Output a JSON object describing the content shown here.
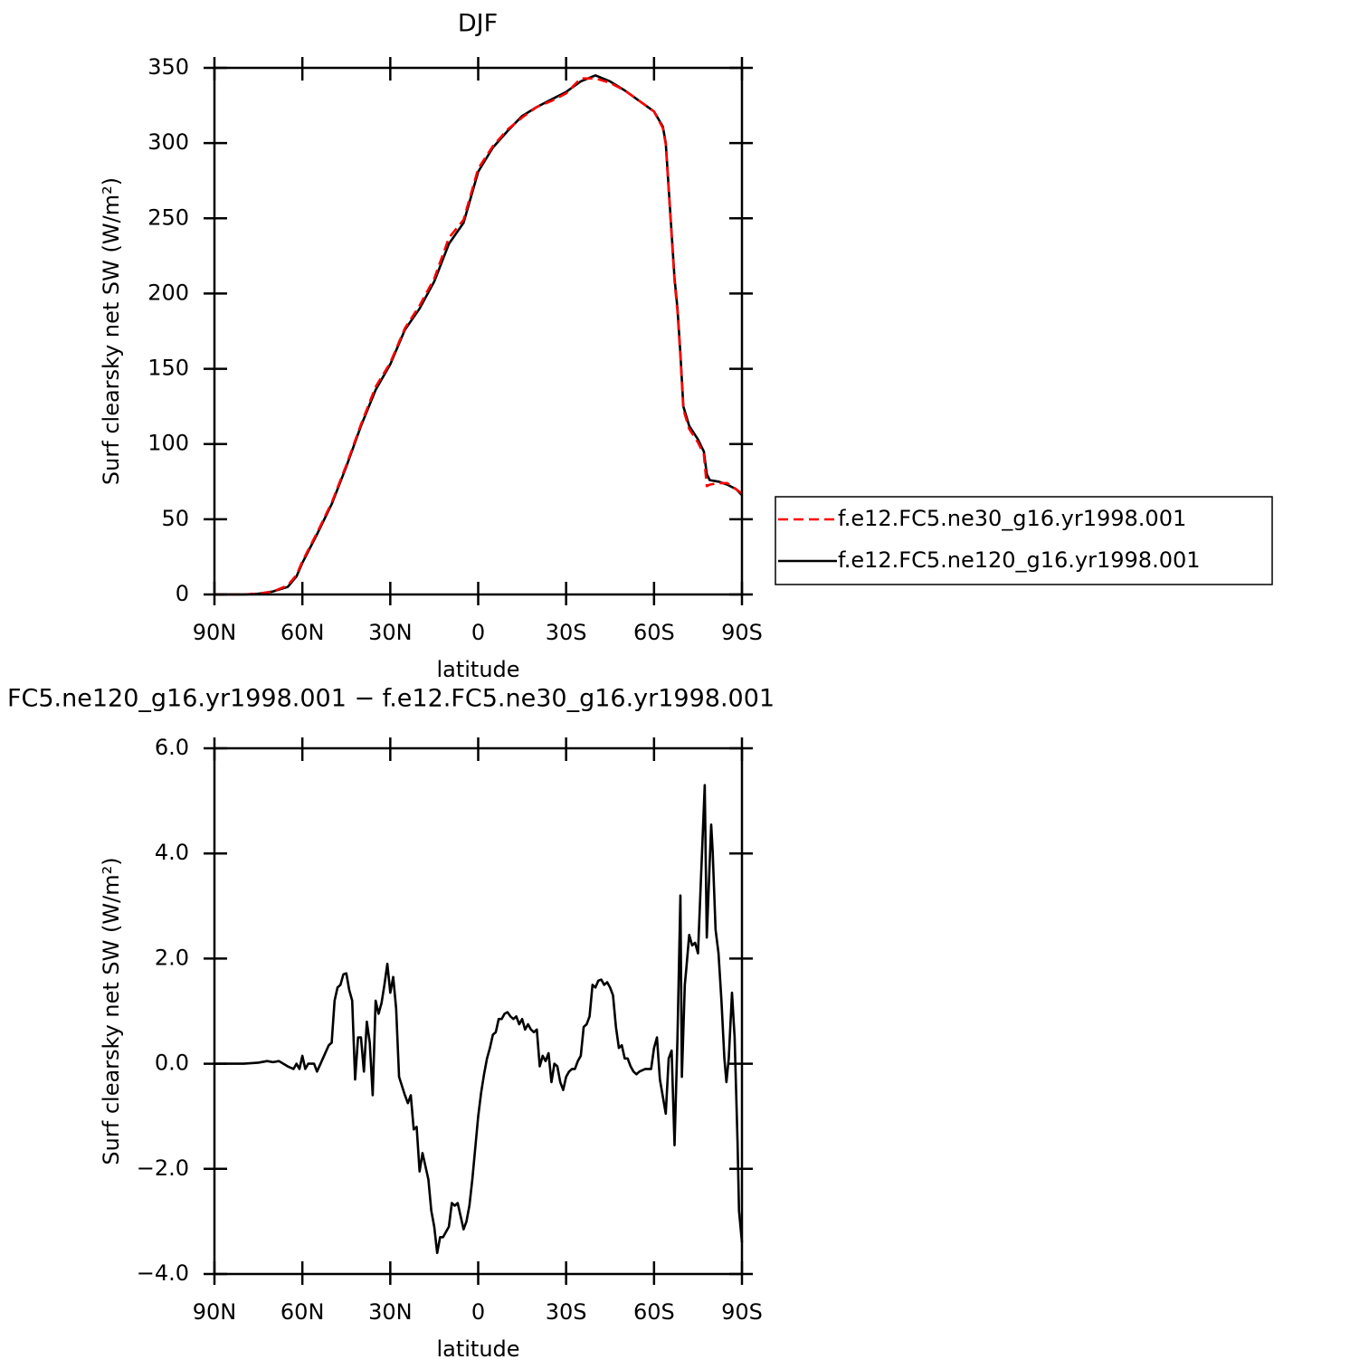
{
  "chart_data": [
    {
      "type": "line",
      "title": "DJF",
      "xlabel": "latitude",
      "ylabel": "Surf clearsky net SW (W/m²)",
      "x": [
        90,
        85,
        80,
        75,
        70,
        65,
        62,
        60,
        55,
        50,
        45,
        40,
        35,
        30,
        25,
        20,
        15,
        10,
        5,
        0,
        -5,
        -10,
        -15,
        -20,
        -25,
        -30,
        -35,
        -40,
        -45,
        -50,
        -55,
        -60,
        -63,
        -64,
        -66,
        -67,
        -68,
        -69,
        -70,
        -72,
        -75,
        -77,
        -78,
        -79,
        -82,
        -85,
        -88,
        -90
      ],
      "series": [
        {
          "name": "f.e12.FC5.ne30_g16.yr1998.001",
          "color": "#ff0000",
          "linestyle": "dashed",
          "values": [
            0,
            0,
            0,
            0.5,
            2,
            6,
            13,
            22,
            41,
            61,
            86,
            113,
            138,
            154,
            177,
            192,
            210,
            237,
            249,
            283,
            298,
            309,
            317,
            324,
            328,
            333,
            343,
            343,
            340,
            335,
            328,
            321,
            310,
            299,
            238,
            208,
            188,
            158,
            123,
            110,
            101,
            93,
            72,
            73,
            74,
            74,
            70,
            67
          ]
        },
        {
          "name": "f.e12.FC5.ne120_g16.yr1998.001",
          "color": "#000000",
          "linestyle": "solid",
          "values": [
            0,
            0,
            0,
            0.5,
            2,
            5,
            12,
            21,
            40,
            60,
            85,
            112,
            136,
            153,
            176,
            190,
            208,
            233,
            247,
            281,
            297,
            308,
            318,
            324,
            329,
            334,
            341,
            345,
            341,
            335,
            328,
            321,
            311,
            300,
            240,
            210,
            190,
            160,
            125,
            112,
            103,
            95,
            80,
            76,
            75,
            73,
            70,
            66
          ]
        }
      ],
      "xlim": [
        90,
        -90
      ],
      "xticks": [
        {
          "value": 90,
          "label": "90N"
        },
        {
          "value": 60,
          "label": "60N"
        },
        {
          "value": 30,
          "label": "30N"
        },
        0,
        {
          "value": -30,
          "label": "30S"
        },
        {
          "value": -60,
          "label": "60S"
        },
        {
          "value": -90,
          "label": "90S"
        }
      ],
      "ylim": [
        0,
        350
      ],
      "yticks": [
        0,
        50,
        100,
        150,
        200,
        250,
        300,
        350
      ],
      "legend": "outside-right"
    },
    {
      "type": "line",
      "title": "FC5.ne120_g16.yr1998.001 − f.e12.FC5.ne30_g16.yr1998.001",
      "xlabel": "latitude",
      "ylabel": "Surf clearsky net SW (W/m²)",
      "x": [
        90,
        80,
        75,
        72,
        70,
        68,
        65,
        63,
        62,
        61,
        60,
        59,
        58,
        56,
        55,
        53,
        51,
        50,
        49,
        48,
        47,
        46,
        45,
        44,
        43,
        42,
        41,
        40,
        39,
        38,
        37,
        36,
        35,
        34,
        33,
        32,
        31,
        30,
        29,
        28,
        27,
        25,
        24,
        23,
        22,
        21,
        20,
        19,
        17,
        16,
        15,
        14,
        13,
        12,
        11,
        10,
        9,
        8,
        7,
        6,
        5,
        4,
        3,
        2,
        1,
        0,
        -1,
        -2,
        -3,
        -4,
        -5,
        -6,
        -7,
        -8,
        -9,
        -10,
        -11,
        -12,
        -13,
        -14,
        -15,
        -16,
        -17,
        -18,
        -19,
        -20,
        -21,
        -22,
        -23,
        -24,
        -25,
        -26,
        -27,
        -28,
        -29,
        -30,
        -31,
        -32,
        -33,
        -34,
        -35,
        -36,
        -37,
        -38,
        -39,
        -40,
        -41,
        -42,
        -43,
        -44,
        -45,
        -46,
        -47,
        -48,
        -49,
        -50,
        -51,
        -52,
        -53,
        -54,
        -55,
        -57,
        -59,
        -60,
        -61,
        -62,
        -64,
        -65,
        -66,
        -67,
        -68,
        -69,
        -69.5,
        -70.5,
        -71,
        -72,
        -73,
        -74,
        -75,
        -76,
        -77.3,
        -78,
        -79.5,
        -80,
        -81,
        -82,
        -83,
        -84,
        -84.7,
        -85.5,
        -86.6,
        -87.5,
        -88.5,
        -89,
        -90
      ],
      "series": [
        {
          "color": "#000000",
          "linestyle": "solid",
          "values": [
            0,
            0,
            0.02,
            0.05,
            0.03,
            0.05,
            -0.05,
            -0.1,
            0,
            -0.1,
            0.15,
            -0.1,
            0,
            0,
            -0.15,
            0.1,
            0.35,
            0.4,
            1.2,
            1.45,
            1.5,
            1.7,
            1.72,
            1.4,
            1.2,
            -0.3,
            0.5,
            0.5,
            -0.15,
            0.8,
            0.4,
            -0.6,
            1.2,
            0.95,
            1.15,
            1.5,
            1.9,
            1.35,
            1.65,
            1.05,
            -0.25,
            -0.6,
            -0.75,
            -0.6,
            -1.25,
            -1.2,
            -2.05,
            -1.7,
            -2.2,
            -2.8,
            -3.1,
            -3.6,
            -3.3,
            -3.3,
            -3.2,
            -3.1,
            -2.65,
            -2.7,
            -2.65,
            -2.9,
            -3.15,
            -3.0,
            -2.7,
            -2.2,
            -1.6,
            -1.0,
            -0.55,
            -0.2,
            0.1,
            0.3,
            0.55,
            0.6,
            0.85,
            0.85,
            0.95,
            0.98,
            0.9,
            0.85,
            0.9,
            0.75,
            0.85,
            0.65,
            0.75,
            0.65,
            0.6,
            0.65,
            -0.05,
            0.15,
            0.05,
            0.2,
            -0.35,
            0,
            -0.05,
            -0.35,
            -0.5,
            -0.25,
            -0.15,
            -0.1,
            -0.1,
            0.05,
            0.15,
            0.7,
            0.75,
            0.9,
            1.5,
            1.45,
            1.58,
            1.6,
            1.5,
            1.55,
            1.45,
            1.3,
            0.7,
            0.3,
            0.35,
            0.1,
            0.1,
            -0.05,
            -0.15,
            -0.2,
            -0.15,
            -0.1,
            -0.1,
            0.3,
            0.5,
            -0.3,
            -0.95,
            0.1,
            0.25,
            -1.55,
            0.5,
            3.2,
            -0.25,
            1.5,
            1.8,
            2.45,
            2.25,
            2.3,
            2.1,
            3.5,
            5.3,
            2.4,
            4.55,
            4.05,
            2.55,
            2.1,
            1.2,
            0.1,
            -0.35,
            0.1,
            1.35,
            0.5,
            -1.5,
            -2.8,
            -3.4
          ]
        }
      ],
      "xlim": [
        90,
        -90
      ],
      "xticks": [
        {
          "value": 90,
          "label": "90N"
        },
        {
          "value": 60,
          "label": "60N"
        },
        {
          "value": 30,
          "label": "30N"
        },
        0,
        {
          "value": -30,
          "label": "30S"
        },
        {
          "value": -60,
          "label": "60S"
        },
        {
          "value": -90,
          "label": "90S"
        }
      ],
      "ylim": [
        -4,
        6
      ],
      "yticks": [
        {
          "value": -4,
          "label": "−4.0"
        },
        {
          "value": -2,
          "label": "−2.0"
        },
        {
          "value": 0,
          "label": "0.0"
        },
        {
          "value": 2,
          "label": "2.0"
        },
        {
          "value": 4,
          "label": "4.0"
        },
        {
          "value": 6,
          "label": "6.0"
        }
      ]
    }
  ]
}
